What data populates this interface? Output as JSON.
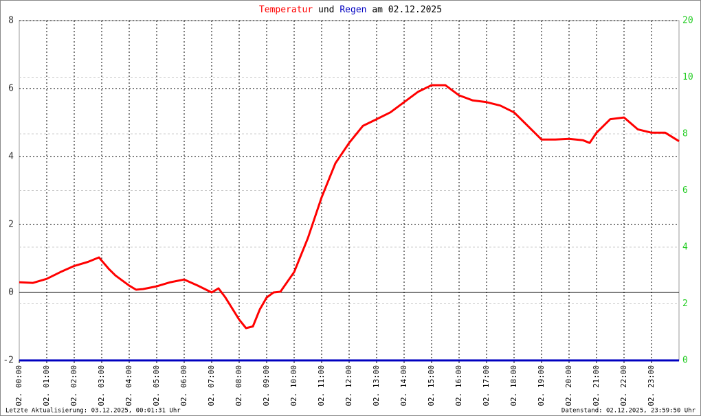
{
  "chart_data": {
    "type": "line",
    "title_joiner": "und",
    "title_date": "am 02.12.2025",
    "xlim": [
      0,
      24
    ],
    "xticks": [
      {
        "value": 0,
        "label": "02. 00:00"
      },
      {
        "value": 1,
        "label": "02. 01:00"
      },
      {
        "value": 2,
        "label": "02. 02:00"
      },
      {
        "value": 3,
        "label": "02. 03:00"
      },
      {
        "value": 4,
        "label": "02. 04:00"
      },
      {
        "value": 5,
        "label": "02. 05:00"
      },
      {
        "value": 6,
        "label": "02. 06:00"
      },
      {
        "value": 7,
        "label": "02. 07:00"
      },
      {
        "value": 8,
        "label": "02. 08:00"
      },
      {
        "value": 9,
        "label": "02. 09:00"
      },
      {
        "value": 10,
        "label": "02. 10:00"
      },
      {
        "value": 11,
        "label": "02. 11:00"
      },
      {
        "value": 12,
        "label": "02. 12:00"
      },
      {
        "value": 13,
        "label": "02. 13:00"
      },
      {
        "value": 14,
        "label": "02. 14:00"
      },
      {
        "value": 15,
        "label": "02. 15:00"
      },
      {
        "value": 16,
        "label": "02. 16:00"
      },
      {
        "value": 17,
        "label": "02. 17:00"
      },
      {
        "value": 18,
        "label": "02. 18:00"
      },
      {
        "value": 19,
        "label": "02. 19:00"
      },
      {
        "value": 20,
        "label": "02. 20:00"
      },
      {
        "value": 21,
        "label": "02. 21:00"
      },
      {
        "value": 22,
        "label": "02. 22:00"
      },
      {
        "value": 23,
        "label": "02. 23:00"
      }
    ],
    "ylim": [
      -2,
      8
    ],
    "yticks": [
      -2,
      0,
      2,
      4,
      6,
      8
    ],
    "y2lim": [
      0,
      12
    ],
    "y2ticks": [
      0,
      2,
      4,
      6,
      8,
      10
    ],
    "y2_top_label": "20",
    "grid": true,
    "series": [
      {
        "name": "Temperatur",
        "color": "#ff0000",
        "axis": "y",
        "x": [
          0,
          0.5,
          1,
          1.5,
          2,
          2.5,
          2.9,
          3.25,
          3.5,
          4,
          4.25,
          4.5,
          5,
          5.5,
          6,
          6.5,
          7,
          7.25,
          7.5,
          8,
          8.25,
          8.5,
          8.75,
          9,
          9.25,
          9.5,
          10,
          10.5,
          11,
          11.5,
          12,
          12.5,
          13,
          13.5,
          14,
          14.5,
          15,
          15.5,
          16,
          16.5,
          17,
          17.5,
          18,
          18.5,
          19,
          19.5,
          20,
          20.5,
          20.75,
          21,
          21.5,
          22,
          22.5,
          23,
          23.5,
          24
        ],
        "values": [
          0.3,
          0.28,
          0.4,
          0.6,
          0.78,
          0.9,
          1.03,
          0.7,
          0.5,
          0.2,
          0.08,
          0.1,
          0.18,
          0.3,
          0.38,
          0.2,
          0.0,
          0.12,
          -0.15,
          -0.8,
          -1.05,
          -1.0,
          -0.5,
          -0.15,
          0.0,
          0.02,
          0.6,
          1.6,
          2.8,
          3.8,
          4.4,
          4.9,
          5.1,
          5.3,
          5.6,
          5.9,
          6.1,
          6.1,
          5.8,
          5.65,
          5.6,
          5.5,
          5.3,
          4.9,
          4.5,
          4.5,
          4.52,
          4.48,
          4.4,
          4.7,
          5.1,
          5.15,
          4.8,
          4.7,
          4.7,
          4.45
        ]
      },
      {
        "name": "Regen",
        "color": "#0000c0",
        "axis": "y2",
        "x": [
          0,
          24
        ],
        "values": [
          0,
          0
        ]
      }
    ],
    "footer_left": "Letzte Aktualisierung: 03.12.2025, 00:01:31 Uhr",
    "footer_right": "Datenstand: 02.12.2025, 23:59:50 Uhr"
  }
}
